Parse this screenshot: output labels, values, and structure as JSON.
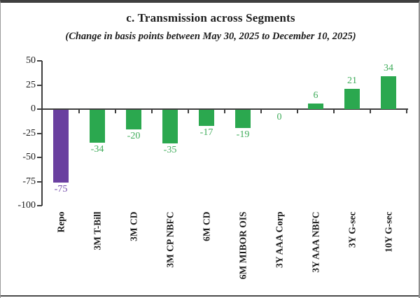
{
  "chart_data": {
    "type": "bar",
    "title": "c. Transmission across Segments",
    "subtitle": "(Change in basis points between May 30, 2025 to December 10, 2025)",
    "categories": [
      "Repo",
      "3M T-Bill",
      "3M CD",
      "3M CP NBFC",
      "6M CD",
      "6M MIBOR OIS",
      "3Y AAA Corp",
      "3Y AAA NBFC",
      "3Y G-sec",
      "10Y G-sec"
    ],
    "values": [
      -75,
      -34,
      -20,
      -35,
      -17,
      -19,
      0,
      6,
      21,
      34
    ],
    "data_labels": [
      "-75",
      "-34",
      "-20",
      "-35",
      "-17",
      "-19",
      "0",
      "6",
      "21",
      "34"
    ],
    "bar_colors": [
      "#6a3fa0",
      "#2ba84f",
      "#2ba84f",
      "#2ba84f",
      "#2ba84f",
      "#2ba84f",
      "#2ba84f",
      "#2ba84f",
      "#2ba84f",
      "#2ba84f"
    ],
    "label_colors": [
      "#6f48a8",
      "#3fac5a",
      "#3fac5a",
      "#3fac5a",
      "#3fac5a",
      "#3fac5a",
      "#3fac5a",
      "#3fac5a",
      "#3fac5a",
      "#3fac5a"
    ],
    "ylabel": "",
    "xlabel": "",
    "ylim": [
      -100,
      50
    ],
    "yticks": [
      50,
      25,
      0,
      -25,
      -50,
      -75,
      -100
    ],
    "grid": false,
    "legend": "none",
    "baseline": 0
  },
  "colors": {
    "repo_bar": "#6a3fa0",
    "market_bar": "#2ba84f",
    "axis": "#3f3f3f",
    "text": "#1c1c1c"
  }
}
